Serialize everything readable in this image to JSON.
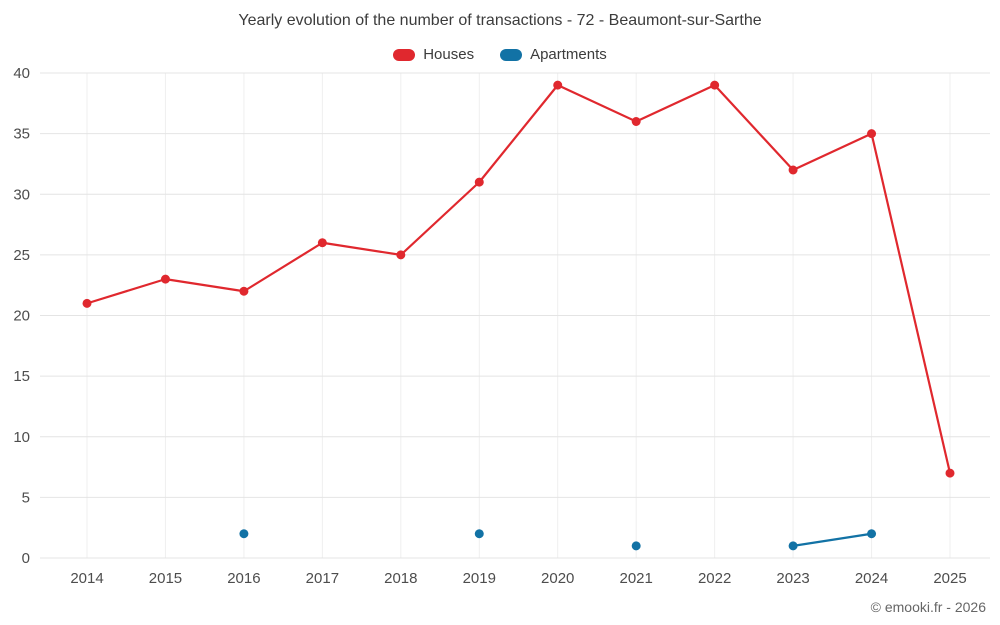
{
  "title": "Yearly evolution of the number of transactions - 72 - Beaumont-sur-Sarthe",
  "copyright": "© emooki.fr - 2026",
  "chart_data": {
    "type": "line",
    "title": "Yearly evolution of the number of transactions - 72 - Beaumont-sur-Sarthe",
    "categories": [
      "2014",
      "2015",
      "2016",
      "2017",
      "2018",
      "2019",
      "2020",
      "2021",
      "2022",
      "2023",
      "2024",
      "2025"
    ],
    "series": [
      {
        "name": "Houses",
        "color": "#e0282e",
        "values": [
          21,
          23,
          22,
          26,
          25,
          31,
          39,
          36,
          39,
          32,
          35,
          7
        ]
      },
      {
        "name": "Apartments",
        "color": "#1272a5",
        "values": [
          null,
          null,
          2,
          null,
          null,
          2,
          null,
          1,
          null,
          1,
          2,
          null
        ]
      }
    ],
    "xlabel": "",
    "ylabel": "",
    "ylim": [
      0,
      40
    ],
    "ytick_step": 5,
    "grid": true,
    "legend_position": "top"
  }
}
